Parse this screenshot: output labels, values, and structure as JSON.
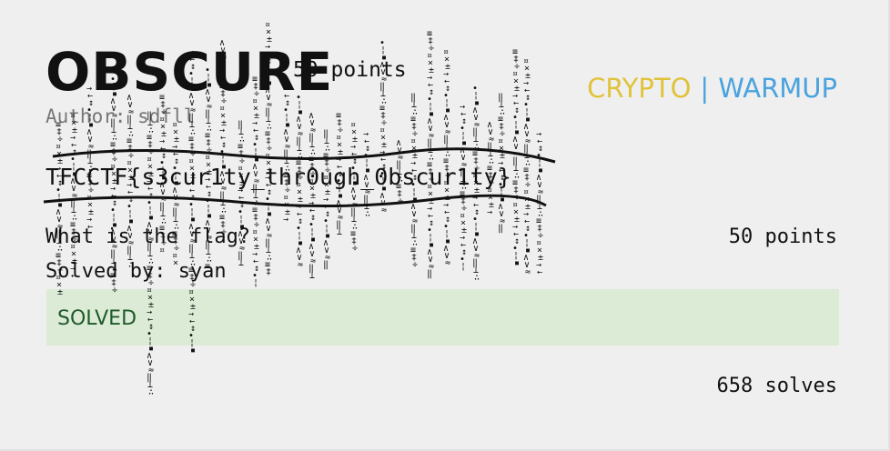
{
  "challenge": {
    "title": "OBSCURE",
    "points_header": "50 points",
    "categories": [
      {
        "label": "CRYPTO",
        "color": "#e0c33a"
      },
      {
        "label": "WARMUP",
        "color": "#4aa3df"
      }
    ],
    "category_separator": "|",
    "author": "Author: sdfll",
    "flag": "TFCCTF{s3cur1ty_thr0ugh_0bscur1ty}",
    "question": "What is the flag?",
    "points": "50 points",
    "solved_by": "Solved by: syan",
    "status": "SOLVED",
    "solves": "658 solves"
  },
  "colors": {
    "background": "#efefef",
    "solved_banner": "#dcebd6",
    "solved_text": "#1f5a2a",
    "author_text": "#777777"
  }
}
